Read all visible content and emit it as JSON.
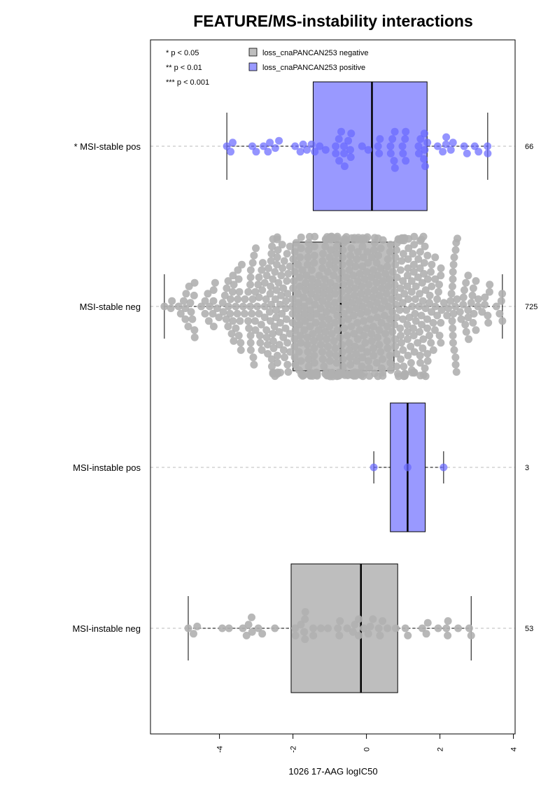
{
  "chart_data": {
    "type": "boxplot",
    "title": "FEATURE/MS-instability interactions",
    "xlabel": "1026 17-AAG logIC50",
    "xlim": [
      -5.7,
      3.85
    ],
    "xticks": [
      "-4",
      "-2",
      "0",
      "2",
      "4"
    ],
    "xtick_values": [
      -4,
      -2,
      0,
      2,
      4
    ],
    "grid": false,
    "significance_legend": [
      "* p < 0.05",
      "** p < 0.01",
      "*** p < 0.001"
    ],
    "legend": [
      {
        "label": "loss_cnaPANCAN253 negative",
        "color": "#bebebe"
      },
      {
        "label": "loss_cnaPANCAN253 positive",
        "color": "#9999ff"
      }
    ],
    "groups": [
      {
        "label": "* MSI-stable pos",
        "n": "66",
        "status": "positive",
        "min": -3.8,
        "q1": -1.45,
        "median": 0.15,
        "q3": 1.65,
        "max": 3.3
      },
      {
        "label": "MSI-stable neg",
        "n": "725",
        "status": "negative",
        "min": -5.5,
        "q1": -2.0,
        "median": -0.7,
        "q3": 0.75,
        "max": 3.7
      },
      {
        "label": "MSI-instable pos",
        "n": "3",
        "status": "positive",
        "min": 0.2,
        "q1": 0.65,
        "median": 1.12,
        "q3": 1.6,
        "max": 2.1
      },
      {
        "label": "MSI-instable neg",
        "n": "53",
        "status": "negative",
        "min": -4.85,
        "q1": -2.05,
        "median": -0.15,
        "q3": 0.85,
        "max": 2.85
      }
    ]
  },
  "colors": {
    "negative_box": "#bebebe",
    "negative_point": "#b0b0b0",
    "positive_box": "#9999ff",
    "positive_point": "#6666ff",
    "axis": "#000000",
    "dashed": "#bbbbbb"
  }
}
